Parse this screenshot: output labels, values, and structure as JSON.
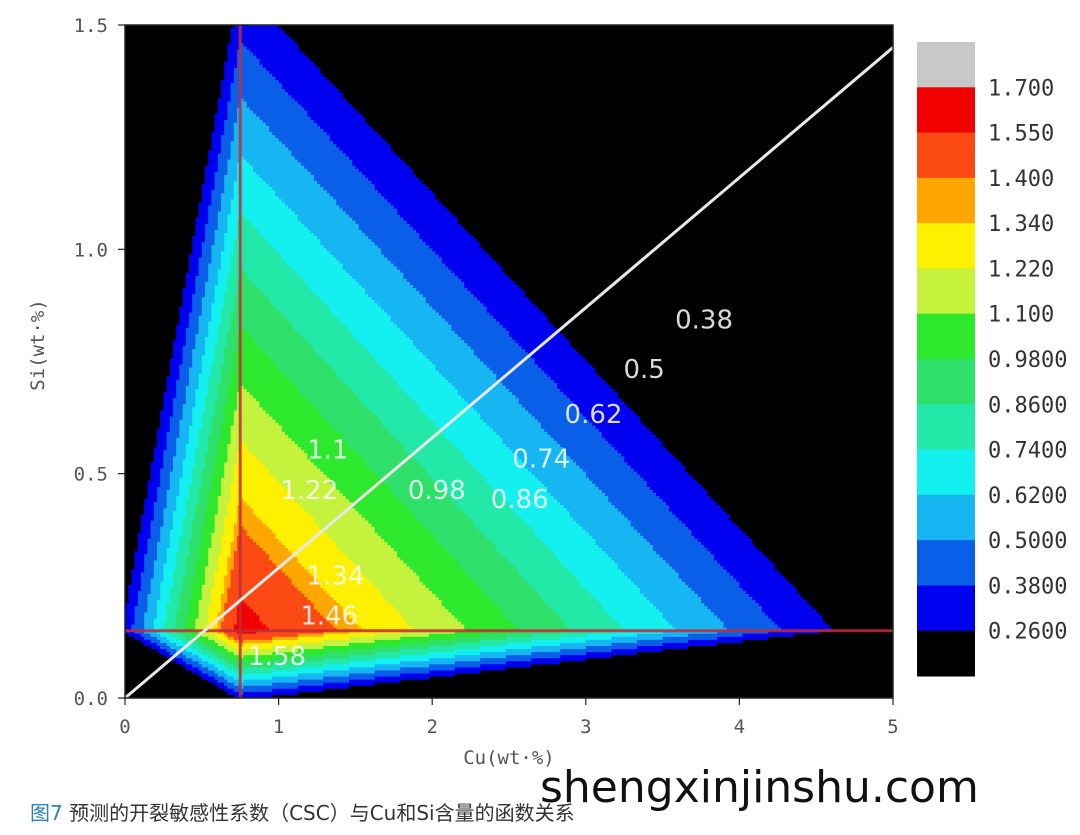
{
  "chart_data": {
    "type": "heatmap",
    "title": "",
    "xlabel": "Cu(wt·%)",
    "ylabel": "Si(wt·%)",
    "xlim": [
      0,
      5
    ],
    "ylim": [
      0,
      1.5
    ],
    "x_ticks": [
      "0",
      "1",
      "2",
      "3",
      "4",
      "5"
    ],
    "y_ticks": [
      "0.0",
      "0.5",
      "1.0",
      "1.5"
    ],
    "peak": {
      "x": 0.75,
      "y": 0.15,
      "value": 1.62
    },
    "reference_lines": {
      "vertical_cu": 0.75,
      "horizontal_si": 0.15,
      "diagonal": [
        [
          0,
          0
        ],
        [
          5,
          1.45
        ]
      ]
    },
    "colorbar": {
      "labels": [
        "1.700",
        "1.550",
        "1.400",
        "1.340",
        "1.220",
        "1.100",
        "0.9800",
        "0.8600",
        "0.7400",
        "0.6200",
        "0.5000",
        "0.3800",
        "0.2600"
      ],
      "colors": [
        "#c8c8c8",
        "#f20000",
        "#fb4a14",
        "#ffa600",
        "#fff000",
        "#c5f23c",
        "#2ee82e",
        "#2fe06a",
        "#22e8a8",
        "#14f0f0",
        "#16b6f2",
        "#0a5fe8",
        "#0000f0",
        "#000000"
      ]
    },
    "levels": [
      0.26,
      0.38,
      0.5,
      0.62,
      0.74,
      0.86,
      0.98,
      1.1,
      1.22,
      1.34,
      1.4,
      1.55,
      1.7
    ],
    "contour_labels": [
      {
        "text": "0.38",
        "x": 3.77,
        "y": 0.84
      },
      {
        "text": "0.5",
        "x": 3.38,
        "y": 0.73
      },
      {
        "text": "0.62",
        "x": 3.05,
        "y": 0.63
      },
      {
        "text": "0.74",
        "x": 2.71,
        "y": 0.53
      },
      {
        "text": "0.86",
        "x": 2.57,
        "y": 0.44
      },
      {
        "text": "0.98",
        "x": 2.03,
        "y": 0.46
      },
      {
        "text": "1.1",
        "x": 1.32,
        "y": 0.55
      },
      {
        "text": "1.22",
        "x": 1.2,
        "y": 0.46
      },
      {
        "text": "1.34",
        "x": 1.37,
        "y": 0.27
      },
      {
        "text": "1.46",
        "x": 1.33,
        "y": 0.18
      },
      {
        "text": "1.58",
        "x": 0.99,
        "y": 0.09
      }
    ]
  },
  "caption": {
    "figure_no": "图7",
    "text": " 预测的开裂敏感性系数（CSC）与Cu和Si含量的函数关系"
  },
  "watermark": "shengxinjinshu.com"
}
